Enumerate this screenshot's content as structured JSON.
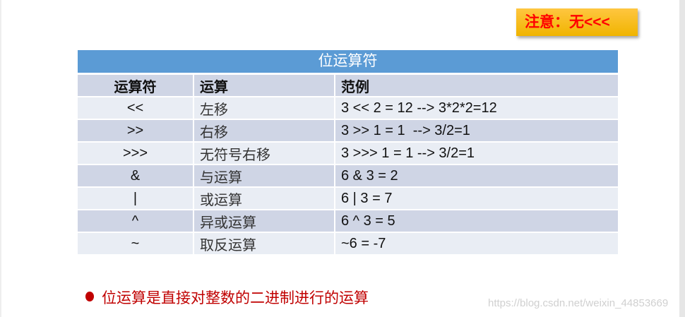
{
  "note": "注意：无<<<",
  "table": {
    "title": "位运算符",
    "headers": [
      "运算符",
      "运算",
      "范例"
    ],
    "rows": [
      {
        "op": "<<",
        "name": "左移",
        "example": "3 << 2 = 12 --> 3*2*2=12"
      },
      {
        "op": ">>",
        "name": "右移",
        "example": "3 >> 1 = 1  --> 3/2=1"
      },
      {
        "op": ">>>",
        "name": "无符号右移",
        "example": "3 >>> 1 = 1 --> 3/2=1"
      },
      {
        "op": "&",
        "name": "与运算",
        "example": "6 & 3 = 2"
      },
      {
        "op": "|",
        "name": "或运算",
        "example": "6 | 3 = 7"
      },
      {
        "op": "^",
        "name": "异或运算",
        "example": "6 ^ 3 = 5"
      },
      {
        "op": "~",
        "name": "取反运算",
        "example": "~6 = -7"
      }
    ]
  },
  "bullet": "位运算是直接对整数的二进制进行的运算",
  "watermark": "https://blog.csdn.net/weixin_44853669",
  "colors": {
    "header_blue": "#5b9bd5",
    "note_bg": "#ffc000",
    "accent_red": "#c00000"
  }
}
